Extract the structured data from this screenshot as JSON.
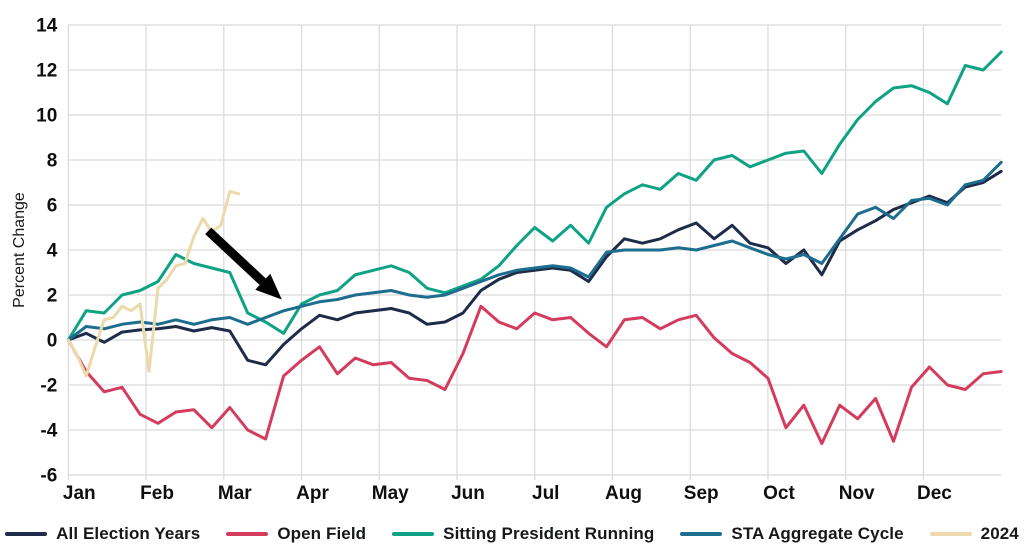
{
  "chart_data": {
    "type": "line",
    "title": "",
    "ylabel": "Percent Change",
    "xlabel": "",
    "x_tick_labels": [
      "Jan",
      "Feb",
      "Mar",
      "Apr",
      "May",
      "Jun",
      "Jul",
      "Aug",
      "Sep",
      "Oct",
      "Nov",
      "Dec"
    ],
    "y_ticks": [
      14,
      12,
      10,
      8,
      6,
      4,
      2,
      0,
      -2,
      -4,
      -6
    ],
    "ylim": [
      -6,
      14
    ],
    "x_unit": "weeks_of_year",
    "x_range_weeks": [
      0,
      52
    ],
    "grid": true,
    "grid_color": "#d9d9d9",
    "text_color": "#0f0f0f",
    "axis_label_color": "#1a1a1a",
    "legend_position": "bottom",
    "series": [
      {
        "name": "All Election Years",
        "color": "#1e2b49",
        "values": [
          0,
          0.3,
          -0.1,
          0.35,
          0.45,
          0.5,
          0.6,
          0.4,
          0.55,
          0.4,
          -0.9,
          -1.1,
          -0.2,
          0.5,
          1.1,
          0.9,
          1.2,
          1.3,
          1.4,
          1.2,
          0.7,
          0.8,
          1.2,
          2.2,
          2.7,
          3.0,
          3.1,
          3.2,
          3.1,
          2.6,
          3.7,
          4.5,
          4.3,
          4.5,
          4.9,
          5.2,
          4.5,
          5.1,
          4.3,
          4.1,
          3.4,
          4.0,
          2.9,
          4.4,
          4.9,
          5.3,
          5.8,
          6.1,
          6.4,
          6.1,
          6.8,
          7.0,
          7.5
        ]
      },
      {
        "name": "Open Field",
        "color": "#d43c5e",
        "values": [
          0,
          -1.4,
          -2.3,
          -2.1,
          -3.3,
          -3.7,
          -3.2,
          -3.1,
          -3.9,
          -3.0,
          -4.0,
          -4.4,
          -1.6,
          -0.9,
          -0.3,
          -1.5,
          -0.8,
          -1.1,
          -1.0,
          -1.7,
          -1.8,
          -2.2,
          -0.6,
          1.5,
          0.8,
          0.5,
          1.2,
          0.9,
          1.0,
          0.3,
          -0.3,
          0.9,
          1.0,
          0.5,
          0.9,
          1.1,
          0.1,
          -0.6,
          -1.0,
          -1.7,
          -3.9,
          -2.9,
          -4.6,
          -2.9,
          -3.5,
          -2.6,
          -4.5,
          -2.1,
          -1.2,
          -2.0,
          -2.2,
          -1.5,
          -1.4
        ]
      },
      {
        "name": "Sitting President Running",
        "color": "#0fa284",
        "values": [
          0,
          1.3,
          1.2,
          2.0,
          2.2,
          2.6,
          3.8,
          3.4,
          3.2,
          3.0,
          1.2,
          0.8,
          0.3,
          1.6,
          2.0,
          2.2,
          2.9,
          3.1,
          3.3,
          3.0,
          2.3,
          2.1,
          2.4,
          2.7,
          3.3,
          4.2,
          5.0,
          4.4,
          5.1,
          4.3,
          5.9,
          6.5,
          6.9,
          6.7,
          7.4,
          7.1,
          8.0,
          8.2,
          7.7,
          8.0,
          8.3,
          8.4,
          7.4,
          8.7,
          9.8,
          10.6,
          11.2,
          11.3,
          11.0,
          10.5,
          12.2,
          12.0,
          12.8
        ]
      },
      {
        "name": "STA Aggregate Cycle",
        "color": "#1d6d8e",
        "values": [
          0,
          0.6,
          0.5,
          0.7,
          0.8,
          0.7,
          0.9,
          0.7,
          0.9,
          1.0,
          0.7,
          1.0,
          1.3,
          1.5,
          1.7,
          1.8,
          2.0,
          2.1,
          2.2,
          2.0,
          1.9,
          2.0,
          2.3,
          2.6,
          2.9,
          3.1,
          3.2,
          3.3,
          3.2,
          2.8,
          3.9,
          4.0,
          4.0,
          4.0,
          4.1,
          4.0,
          4.2,
          4.4,
          4.1,
          3.8,
          3.6,
          3.8,
          3.4,
          4.5,
          5.6,
          5.9,
          5.4,
          6.2,
          6.3,
          6.0,
          6.9,
          7.1,
          7.9
        ]
      },
      {
        "name": "2024",
        "color": "#ecd9ac",
        "x_weeks": [
          0,
          0.5,
          1,
          1.5,
          2,
          2.5,
          3,
          3.5,
          4,
          4.5,
          5,
          5.5,
          6,
          6.5,
          7,
          7.5,
          8,
          8.5,
          9,
          9.5
        ],
        "values": [
          0,
          -0.7,
          -1.6,
          -0.3,
          0.9,
          1.0,
          1.5,
          1.3,
          1.6,
          -1.4,
          2.3,
          2.7,
          3.3,
          3.4,
          4.6,
          5.4,
          4.8,
          5.1,
          6.6,
          6.5
        ]
      }
    ],
    "annotation": {
      "type": "arrow",
      "color": "#000000",
      "from": {
        "week": 7.8,
        "value": 4.85
      },
      "to": {
        "week": 11.9,
        "value": 1.8
      }
    }
  }
}
